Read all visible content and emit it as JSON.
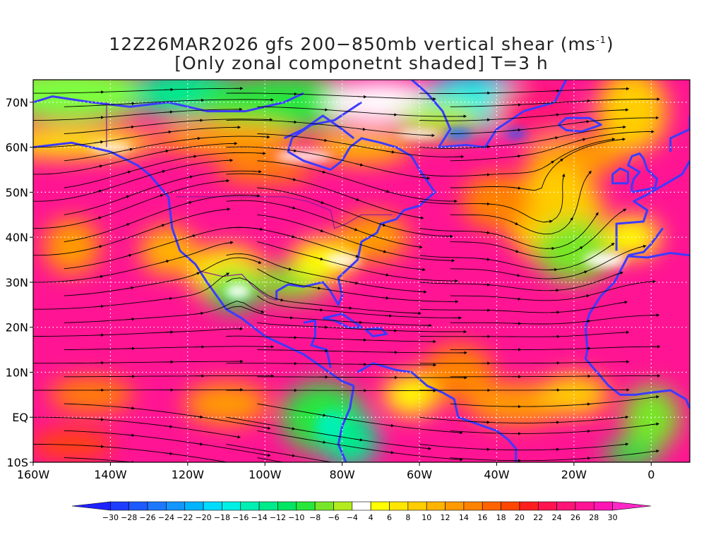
{
  "title": {
    "line1_text": "12Z26MAR2026 gfs 200−850mb vertical shear (ms",
    "line1_sup": "-1",
    "line1_end": ")",
    "line2": "[Only zonal componetnt shaded] T=3 h"
  },
  "map": {
    "projection": "lat-lon",
    "lon_range": [
      -160,
      10
    ],
    "lat_range": [
      -10,
      75
    ],
    "lat_labels": [
      {
        "value": 70,
        "text": "70N"
      },
      {
        "value": 60,
        "text": "60N"
      },
      {
        "value": 50,
        "text": "50N"
      },
      {
        "value": 40,
        "text": "40N"
      },
      {
        "value": 30,
        "text": "30N"
      },
      {
        "value": 20,
        "text": "20N"
      },
      {
        "value": 10,
        "text": "10N"
      },
      {
        "value": 0,
        "text": "EQ"
      },
      {
        "value": -10,
        "text": "10S"
      }
    ],
    "lon_labels": [
      {
        "value": -160,
        "text": "160W"
      },
      {
        "value": -140,
        "text": "140W"
      },
      {
        "value": -120,
        "text": "120W"
      },
      {
        "value": -100,
        "text": "100W"
      },
      {
        "value": -80,
        "text": "80W"
      },
      {
        "value": -60,
        "text": "60W"
      },
      {
        "value": -40,
        "text": "40W"
      },
      {
        "value": -20,
        "text": "20W"
      },
      {
        "value": 0,
        "text": "0"
      }
    ],
    "grid": true,
    "streamlines": true,
    "coastline_color": "#3b3bff",
    "border_color": "#8a1a9a"
  },
  "colorbar": {
    "labels": [
      "−30",
      "−28",
      "−26",
      "−24",
      "−22",
      "−20",
      "−18",
      "−16",
      "−14",
      "−12",
      "−10",
      "−8",
      "−6",
      "−4",
      "4",
      "6",
      "8",
      "10",
      "12",
      "14",
      "16",
      "18",
      "20",
      "22",
      "24",
      "26",
      "28",
      "30"
    ],
    "colors": [
      "#1e22ff",
      "#1e3cff",
      "#1e5aff",
      "#1e78ff",
      "#1496ff",
      "#00b4ff",
      "#00dcff",
      "#00f0e6",
      "#00f0b4",
      "#00eb8c",
      "#00e664",
      "#28e63c",
      "#78e628",
      "#b4eb1e",
      "#ffffff",
      "#ffff00",
      "#ffe600",
      "#ffcd00",
      "#ffb400",
      "#ff9b00",
      "#ff8200",
      "#ff6400",
      "#ff4600",
      "#ff1e1e",
      "#ff1450",
      "#ff1478",
      "#ff1496",
      "#ff14b4",
      "#ff28c8"
    ]
  }
}
